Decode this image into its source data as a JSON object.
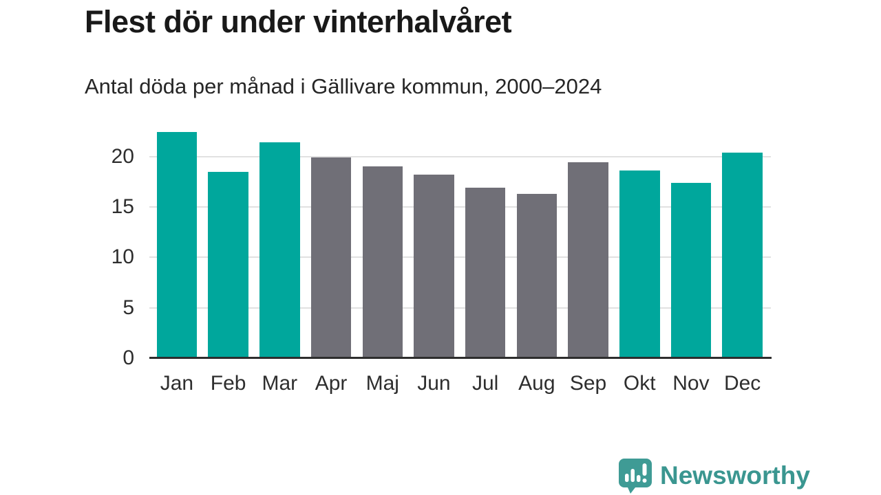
{
  "header": {
    "title": "Flest dör under vinterhalvåret",
    "subtitle": "Antal döda per månad i Gällivare kommun, 2000–2024"
  },
  "chart_data": {
    "type": "bar",
    "title": "Flest dör under vinterhalvåret",
    "subtitle": "Antal döda per månad i Gällivare kommun, 2000–2024",
    "categories": [
      "Jan",
      "Feb",
      "Mar",
      "Apr",
      "Maj",
      "Jun",
      "Jul",
      "Aug",
      "Sep",
      "Okt",
      "Nov",
      "Dec"
    ],
    "values": [
      22.4,
      18.5,
      21.4,
      19.9,
      19.0,
      18.2,
      16.9,
      16.3,
      19.4,
      18.6,
      17.4,
      20.4
    ],
    "bar_groups": [
      "winter",
      "winter",
      "winter",
      "summer",
      "summer",
      "summer",
      "summer",
      "summer",
      "summer",
      "winter",
      "winter",
      "winter"
    ],
    "group_colors": {
      "winter": "#00a79c",
      "summer": "#706f77"
    },
    "xlabel": "",
    "ylabel": "",
    "yticks": [
      0,
      5,
      10,
      15,
      20
    ],
    "ylim": [
      0,
      22.9
    ],
    "grid": "horizontal-only",
    "legend": "none",
    "gridline_color": "#e1e1e1",
    "axis_line_color": "#2d2d2d",
    "tick_label_color": "#2e2e2e"
  },
  "footer": {
    "brand": "Newsworthy",
    "brand_color": "#3a9690",
    "brand_icon": "speech-bubble-bar-chart-exclamation"
  }
}
